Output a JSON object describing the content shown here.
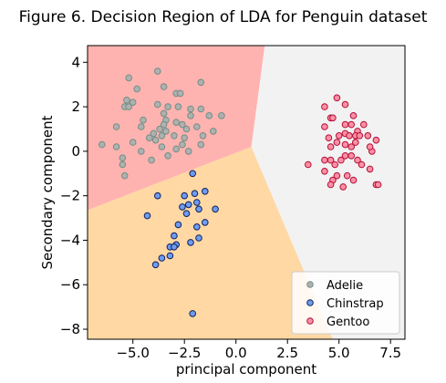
{
  "chart_data": {
    "type": "scatter",
    "title": "Figure 6. Decision Region of LDA for Penguin dataset",
    "xlabel": "principal component",
    "ylabel": "Secondary component",
    "xlim": [
      -7.2,
      8.2
    ],
    "ylim": [
      -8.45,
      4.75
    ],
    "xticks": [
      -5.0,
      -2.5,
      0.0,
      2.5,
      5.0,
      7.5
    ],
    "xtick_labels": [
      "−5.0",
      "−2.5",
      "0.0",
      "2.5",
      "5.0",
      "7.5"
    ],
    "yticks": [
      4,
      2,
      0,
      -2,
      -4,
      -6,
      -8
    ],
    "ytick_labels": [
      "4",
      "2",
      "0",
      "−2",
      "−4",
      "−6",
      "−8"
    ],
    "grid": false,
    "legend_position": "lower-right",
    "regions": [
      {
        "class": "Adelie",
        "color": "#ffb3b0",
        "polygon": [
          [
            -7.2,
            4.75
          ],
          [
            1.4,
            4.75
          ],
          [
            0.75,
            0.2
          ],
          [
            -7.2,
            -2.65
          ]
        ]
      },
      {
        "class": "Chinstrap",
        "color": "#ffd8a4",
        "polygon": [
          [
            -7.2,
            -2.65
          ],
          [
            0.75,
            0.2
          ],
          [
            4.7,
            -8.45
          ],
          [
            -7.2,
            -8.45
          ]
        ]
      },
      {
        "class": "Gentoo",
        "color": "#f2f2f2",
        "polygon": [
          [
            1.4,
            4.75
          ],
          [
            8.2,
            4.75
          ],
          [
            8.2,
            -8.45
          ],
          [
            4.7,
            -8.45
          ],
          [
            0.75,
            0.2
          ]
        ]
      }
    ],
    "series": [
      {
        "name": "Adelie",
        "fill": "#b0b0b0",
        "edge": "#6f8f84",
        "points": [
          [
            -5.2,
            3.3
          ],
          [
            -3.8,
            3.6
          ],
          [
            -3.5,
            2.9
          ],
          [
            -4.8,
            2.8
          ],
          [
            -2.9,
            2.6
          ],
          [
            -2.7,
            2.6
          ],
          [
            -1.7,
            3.1
          ],
          [
            -5.3,
            2.3
          ],
          [
            -5.0,
            2.2
          ],
          [
            -5.4,
            2.0
          ],
          [
            -5.2,
            2.0
          ],
          [
            -3.8,
            2.1
          ],
          [
            -3.3,
            2.0
          ],
          [
            -2.8,
            2.0
          ],
          [
            -2.2,
            1.9
          ],
          [
            -1.7,
            1.9
          ],
          [
            -3.5,
            1.7
          ],
          [
            -3.4,
            1.4
          ],
          [
            -2.9,
            1.3
          ],
          [
            -2.6,
            1.2
          ],
          [
            -2.2,
            1.6
          ],
          [
            -1.3,
            1.6
          ],
          [
            -0.7,
            1.6
          ],
          [
            -4.5,
            1.4
          ],
          [
            -3.5,
            1.2
          ],
          [
            -2.4,
            1.0
          ],
          [
            -1.9,
            1.1
          ],
          [
            -5.8,
            1.1
          ],
          [
            -4.6,
            1.1
          ],
          [
            -3.7,
            1.0
          ],
          [
            -3.4,
            0.9
          ],
          [
            -4.0,
            0.8
          ],
          [
            -4.2,
            0.6
          ],
          [
            -3.9,
            0.5
          ],
          [
            -3.6,
            0.7
          ],
          [
            -3.0,
            0.7
          ],
          [
            -2.5,
            0.6
          ],
          [
            -1.6,
            0.7
          ],
          [
            -1.1,
            0.9
          ],
          [
            -1.7,
            0.3
          ],
          [
            -2.6,
            0.3
          ],
          [
            -2.9,
            0.1
          ],
          [
            -2.3,
            0.0
          ],
          [
            -3.3,
            -0.2
          ],
          [
            -4.1,
            -0.4
          ],
          [
            -5.5,
            -0.3
          ],
          [
            -5.5,
            -0.6
          ],
          [
            -5.8,
            0.2
          ],
          [
            -4.6,
            0.0
          ],
          [
            -5.0,
            0.4
          ],
          [
            -6.5,
            0.3
          ],
          [
            -5.4,
            -1.1
          ],
          [
            -3.6,
            0.2
          ]
        ]
      },
      {
        "name": "Chinstrap",
        "fill": "#6e9cf2",
        "edge": "#10205a",
        "points": [
          [
            -2.1,
            -1.0
          ],
          [
            -3.8,
            -2.0
          ],
          [
            -2.5,
            -2.0
          ],
          [
            -2.0,
            -1.9
          ],
          [
            -1.5,
            -1.8
          ],
          [
            -1.9,
            -2.3
          ],
          [
            -1.8,
            -2.6
          ],
          [
            -2.3,
            -2.4
          ],
          [
            -2.6,
            -2.5
          ],
          [
            -2.4,
            -2.8
          ],
          [
            -1.0,
            -2.6
          ],
          [
            -4.3,
            -2.9
          ],
          [
            -2.8,
            -3.3
          ],
          [
            -1.5,
            -3.2
          ],
          [
            -1.9,
            -3.4
          ],
          [
            -1.8,
            -3.9
          ],
          [
            -2.2,
            -4.1
          ],
          [
            -3.0,
            -3.8
          ],
          [
            -3.2,
            -4.3
          ],
          [
            -2.9,
            -4.2
          ],
          [
            -3.0,
            -4.3
          ],
          [
            -3.6,
            -4.8
          ],
          [
            -3.2,
            -4.7
          ],
          [
            -3.9,
            -5.1
          ],
          [
            -2.1,
            -7.3
          ]
        ]
      },
      {
        "name": "Gentoo",
        "fill": "#ff8fa2",
        "edge": "#b00f3a",
        "points": [
          [
            4.9,
            2.4
          ],
          [
            5.3,
            2.1
          ],
          [
            4.3,
            2.0
          ],
          [
            5.7,
            1.6
          ],
          [
            4.6,
            1.5
          ],
          [
            4.7,
            1.5
          ],
          [
            5.3,
            1.2
          ],
          [
            4.3,
            1.1
          ],
          [
            5.6,
            1.2
          ],
          [
            6.2,
            1.2
          ],
          [
            5.9,
            0.9
          ],
          [
            5.3,
            0.8
          ],
          [
            5.0,
            0.7
          ],
          [
            5.5,
            0.7
          ],
          [
            5.8,
            0.7
          ],
          [
            6.0,
            0.7
          ],
          [
            6.4,
            0.7
          ],
          [
            6.8,
            0.5
          ],
          [
            4.5,
            0.6
          ],
          [
            4.9,
            0.4
          ],
          [
            5.3,
            0.3
          ],
          [
            5.8,
            0.4
          ],
          [
            4.6,
            0.2
          ],
          [
            5.6,
            0.2
          ],
          [
            6.6,
            0.0
          ],
          [
            5.3,
            -0.2
          ],
          [
            5.6,
            -0.2
          ],
          [
            5.1,
            -0.4
          ],
          [
            4.6,
            -0.4
          ],
          [
            4.8,
            -0.6
          ],
          [
            5.9,
            -0.4
          ],
          [
            6.1,
            -0.6
          ],
          [
            3.5,
            -0.6
          ],
          [
            6.5,
            -0.8
          ],
          [
            4.3,
            -0.4
          ],
          [
            5.4,
            -1.1
          ],
          [
            5.2,
            -1.6
          ],
          [
            4.9,
            -1.1
          ],
          [
            4.7,
            -1.3
          ],
          [
            6.8,
            -1.5
          ],
          [
            5.7,
            -1.3
          ],
          [
            4.6,
            -1.5
          ],
          [
            6.5,
            0.2
          ],
          [
            4.3,
            -0.9
          ],
          [
            6.9,
            -1.5
          ]
        ]
      }
    ]
  }
}
